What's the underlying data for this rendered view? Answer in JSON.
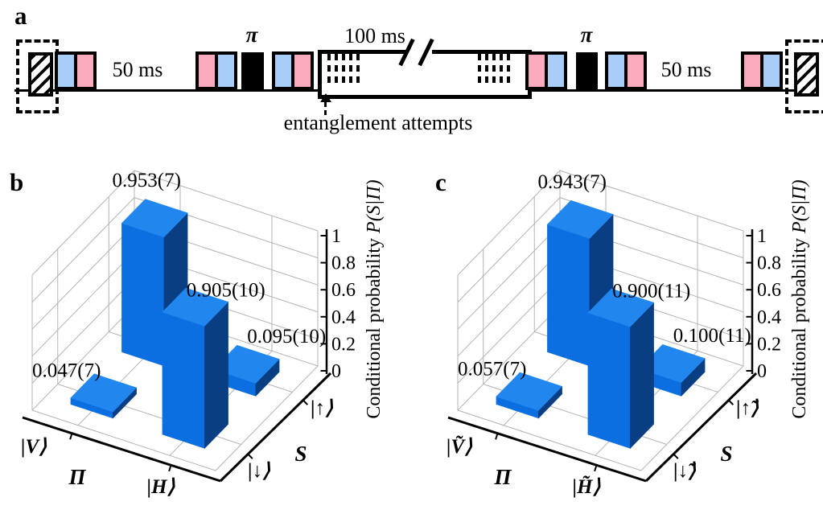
{
  "panels": {
    "a_label": "a",
    "b_label": "b",
    "c_label": "c"
  },
  "pulse_sequence": {
    "gap_left_label": "50 ms",
    "gap_mid_label": "100 ms",
    "gap_right_label": "50 ms",
    "pi_label": "π",
    "annotation": "entanglement attempts",
    "element_names": [
      "detection-window",
      "readout-hatched-pulse",
      "blue-pulse",
      "pink-pulse",
      "pi-pulse",
      "entanglement-attempt-window"
    ]
  },
  "colors": {
    "pulse_blue": "#a8cdf6",
    "pulse_pink": "#fcaabe",
    "bar_front": "#0b6fe2",
    "bar_top": "#2186ee",
    "bar_side": "#093e82",
    "grid": "#b3b3b3",
    "axis": "#000000"
  },
  "chart_data": [
    {
      "type": "bar",
      "projection": "3d",
      "panel": "b",
      "categories": [
        "|V⟩",
        "|H⟩"
      ],
      "category_axis_label": "Π",
      "series_axis_label": "S",
      "series": [
        {
          "name": "|↓⟩",
          "values": [
            0.047,
            0.905
          ],
          "value_labels": [
            "0.047(7)",
            "0.905(10)"
          ]
        },
        {
          "name": "|↑⟩",
          "values": [
            0.953,
            0.095
          ],
          "value_labels": [
            "0.953(7)",
            "0.095(10)"
          ]
        }
      ],
      "zlabel_regular": "Conditional probability ",
      "zlabel_italic": "P(S|Π)",
      "z_ticks": [
        "0",
        "0.2",
        "0.4",
        "0.6",
        "0.8",
        "1"
      ],
      "zlim": [
        0,
        1
      ],
      "grid": true
    },
    {
      "type": "bar",
      "projection": "3d",
      "panel": "c",
      "categories": [
        "|Ṽ⟩",
        "|H̃⟩"
      ],
      "category_axis_label": "Π",
      "series_axis_label": "S",
      "series": [
        {
          "name": "|↓̃⟩",
          "values": [
            0.057,
            0.9
          ],
          "value_labels": [
            "0.057(7)",
            "0.900(11)"
          ]
        },
        {
          "name": "|↑̃⟩",
          "values": [
            0.943,
            0.1
          ],
          "value_labels": [
            "0.943(7)",
            "0.100(11)"
          ]
        }
      ],
      "zlabel_regular": "Conditional probability ",
      "zlabel_italic": "P(S|Π)",
      "z_ticks": [
        "0",
        "0.2",
        "0.4",
        "0.6",
        "0.8",
        "1"
      ],
      "zlim": [
        0,
        1
      ],
      "grid": true
    }
  ]
}
